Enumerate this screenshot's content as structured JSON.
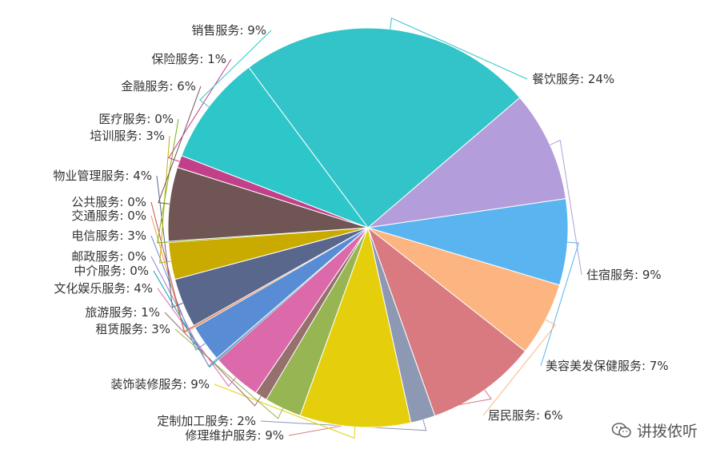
{
  "chart_data": {
    "type": "pie",
    "title": "",
    "slices": [
      {
        "label": "餐饮服务",
        "display": "餐饮服务: 24%",
        "value": 24,
        "color": "#32c4c8"
      },
      {
        "label": "住宿服务",
        "display": "住宿服务: 9%",
        "value": 9,
        "color": "#b39ddb"
      },
      {
        "label": "美容美发保健服务",
        "display": "美容美发保健服务: 7%",
        "value": 7,
        "color": "#5ab4ef"
      },
      {
        "label": "居民服务",
        "display": "居民服务: 6%",
        "value": 6,
        "color": "#fcb581"
      },
      {
        "label": "修理维护服务",
        "display": "修理维护服务: 9%",
        "value": 9,
        "color": "#d87a80"
      },
      {
        "label": "定制加工服务",
        "display": "定制加工服务: 2%",
        "value": 2,
        "color": "#8d98b3"
      },
      {
        "label": "装饰装修服务",
        "display": "装饰装修服务: 9%",
        "value": 9,
        "color": "#e5cf0d"
      },
      {
        "label": "租赁服务",
        "display": "租赁服务: 3%",
        "value": 3,
        "color": "#97b552"
      },
      {
        "label": "旅游服务",
        "display": "旅游服务: 1%",
        "value": 1,
        "color": "#95706d"
      },
      {
        "label": "文化娱乐服务",
        "display": "文化娱乐服务: 4%",
        "value": 4,
        "color": "#dc69aa"
      },
      {
        "label": "中介服务",
        "display": "中介服务: 0%",
        "value": 0,
        "color": "#07a2a4"
      },
      {
        "label": "邮政服务",
        "display": "邮政服务: 0%",
        "value": 0,
        "color": "#9a7fd1"
      },
      {
        "label": "电信服务",
        "display": "电信服务: 3%",
        "value": 3,
        "color": "#588dd5"
      },
      {
        "label": "交通服务",
        "display": "交通服务: 0%",
        "value": 0,
        "color": "#f5994e"
      },
      {
        "label": "公共服务",
        "display": "公共服务: 0%",
        "value": 0,
        "color": "#c05050"
      },
      {
        "label": "物业管理服务",
        "display": "物业管理服务: 4%",
        "value": 4,
        "color": "#59678c"
      },
      {
        "label": "培训服务",
        "display": "培训服务: 3%",
        "value": 3,
        "color": "#c9ab00"
      },
      {
        "label": "医疗服务",
        "display": "医疗服务: 0%",
        "value": 0,
        "color": "#7eb00a"
      },
      {
        "label": "金融服务",
        "display": "金融服务: 6%",
        "value": 6,
        "color": "#6f5553"
      },
      {
        "label": "保险服务",
        "display": "保险服务: 1%",
        "value": 1,
        "color": "#c14089"
      },
      {
        "label": "销售服务",
        "display": "销售服务: 9%",
        "value": 9,
        "color": "#2ec7c9"
      }
    ]
  },
  "watermark": {
    "text": "讲拨侬听"
  }
}
